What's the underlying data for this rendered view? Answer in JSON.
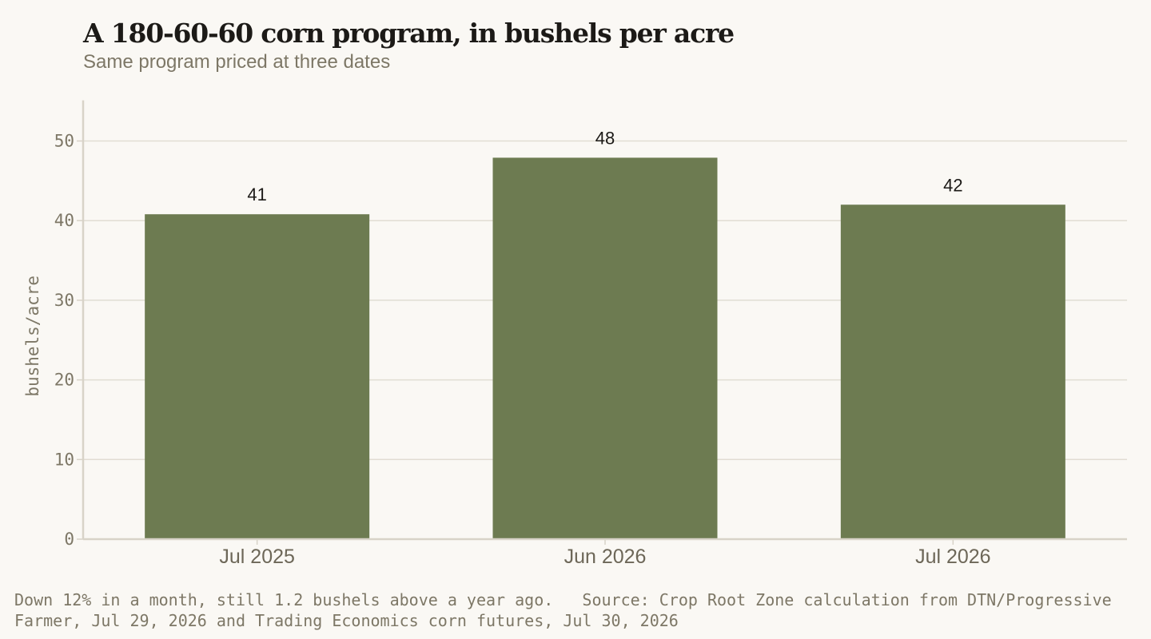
{
  "header": {
    "title": "A 180-60-60 corn program, in bushels per acre",
    "subtitle": "Same program priced at three dates"
  },
  "footer": {
    "note": "Down 12% in a month, still 1.2 bushels above a year ago.   Source: Crop Root Zone calculation from DTN/Progressive Farmer, Jul 29, 2026 and Trading Economics corn futures, Jul 30, 2026"
  },
  "colors": {
    "bar": "#6d7b51",
    "grid": "#e1ddd3",
    "axis": "#d8d3c8",
    "background": "#faf8f4"
  },
  "chart_data": {
    "type": "bar",
    "categories": [
      "Jul 2025",
      "Jun 2026",
      "Jul 2026"
    ],
    "values": [
      40.8,
      47.9,
      42.0
    ],
    "data_labels": [
      "41",
      "48",
      "42"
    ],
    "ylabel": "bushels/acre",
    "xlabel": "",
    "ylim": [
      0,
      55
    ],
    "yticks": [
      0,
      10,
      20,
      30,
      40,
      50
    ],
    "grid": true,
    "legend": false
  }
}
